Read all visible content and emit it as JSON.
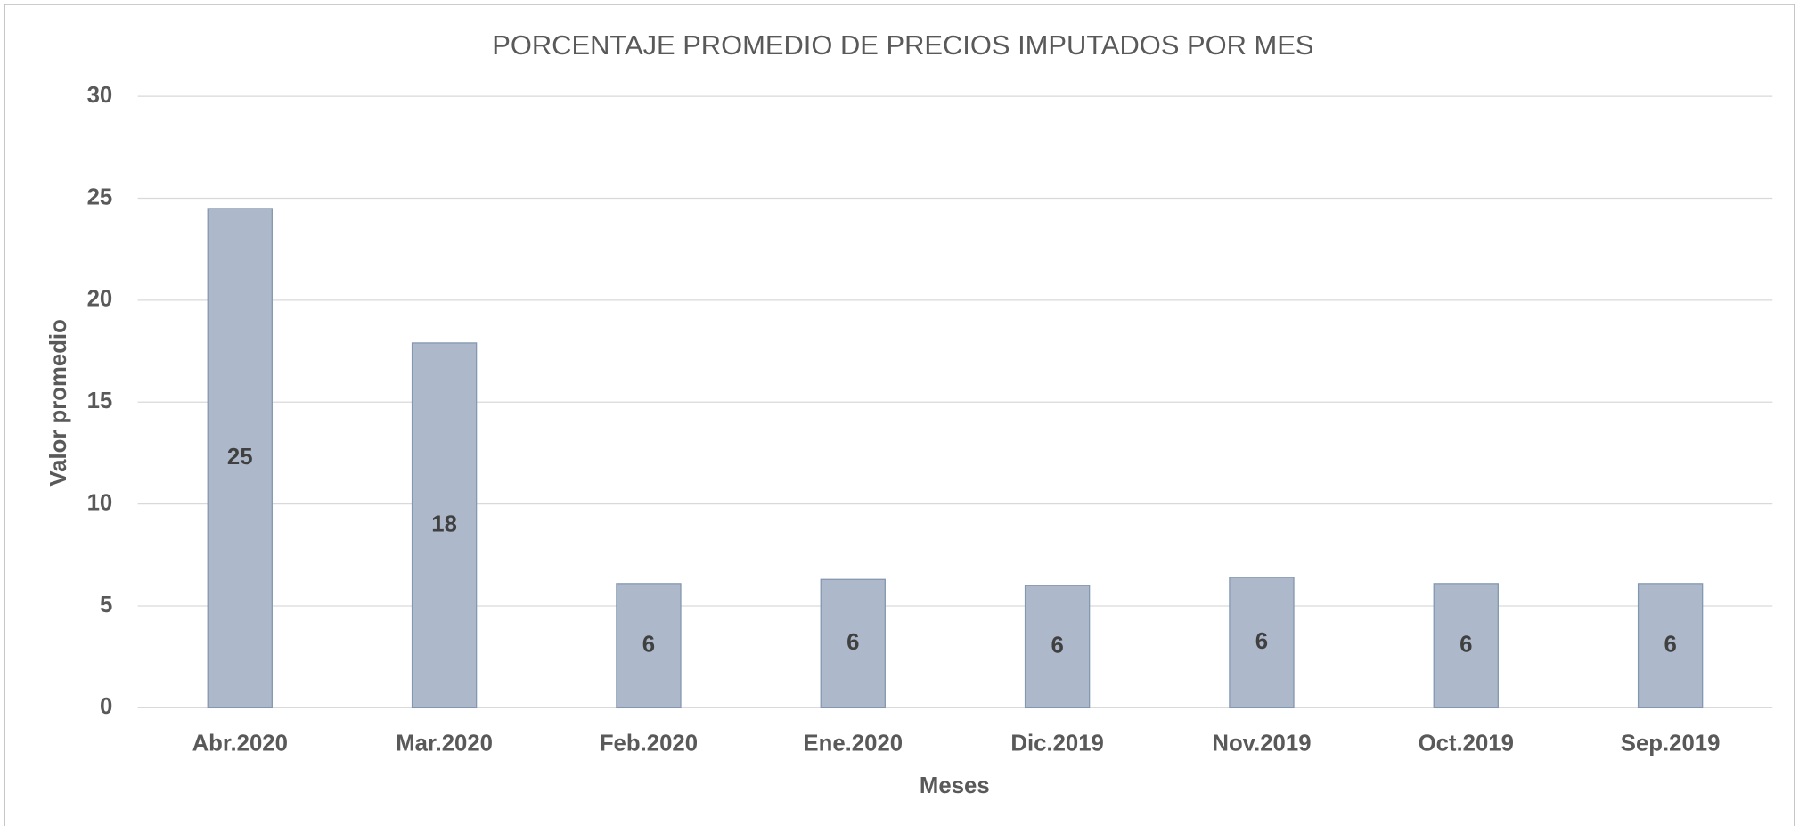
{
  "chart_data": {
    "type": "bar",
    "title": "PORCENTAJE PROMEDIO DE PRECIOS IMPUTADOS  POR MES",
    "x_label": "Meses",
    "y_label": "Valor promedio",
    "categories": [
      "Abr.2020",
      "Mar.2020",
      "Feb.2020",
      "Ene.2020",
      "Dic.2019",
      "Nov.2019",
      "Oct.2019",
      "Sep.2019"
    ],
    "values": [
      24.5,
      17.9,
      6.1,
      6.3,
      6.0,
      6.4,
      6.1,
      6.1
    ],
    "value_labels": [
      "25",
      "18",
      "6",
      "6",
      "6",
      "6",
      "6",
      "6"
    ],
    "color": "#adb9ca",
    "ylim": [
      0,
      30
    ],
    "yticks": [
      0,
      5,
      10,
      15,
      20,
      25,
      30
    ],
    "grid": true
  }
}
